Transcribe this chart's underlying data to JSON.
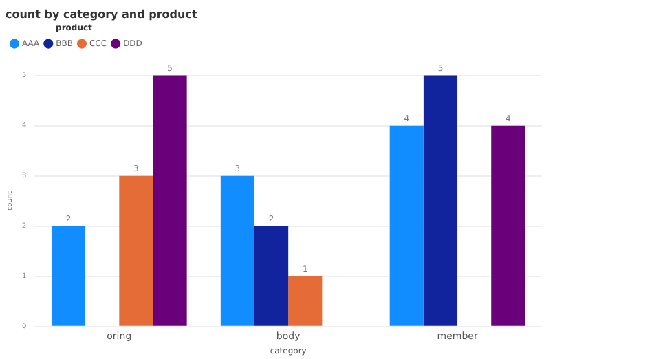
{
  "chart_data": {
    "type": "bar",
    "title": "count by category and product",
    "xlabel": "category",
    "ylabel": "count",
    "legend_title": "product",
    "categories": [
      "oring",
      "body",
      "member"
    ],
    "series": [
      {
        "name": "AAA",
        "color": "#118dff",
        "values": [
          2,
          3,
          4
        ]
      },
      {
        "name": "BBB",
        "color": "#12239e",
        "values": [
          null,
          2,
          5
        ]
      },
      {
        "name": "CCC",
        "color": "#e66c37",
        "values": [
          3,
          1,
          null
        ]
      },
      {
        "name": "DDD",
        "color": "#6b007b",
        "values": [
          5,
          null,
          4
        ]
      }
    ],
    "ylim": [
      0,
      5
    ],
    "yticks": [
      0,
      1,
      2,
      3,
      4,
      5
    ],
    "grid": "y",
    "legend": "top left",
    "data_labels": true
  }
}
